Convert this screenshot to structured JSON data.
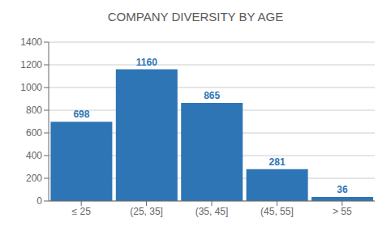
{
  "chart_data": {
    "type": "bar",
    "title": "COMPANY DIVERSITY BY AGE",
    "categories": [
      "≤ 25",
      "(25, 35]",
      "(35, 45]",
      "(45, 55]",
      "> 55"
    ],
    "values": [
      698,
      1160,
      865,
      281,
      36
    ],
    "color": "#2E75B6",
    "ylim": [
      0,
      1400
    ],
    "yticks": [
      0,
      200,
      400,
      600,
      800,
      1000,
      1200,
      1400
    ],
    "grid": true,
    "data_labels": true
  }
}
